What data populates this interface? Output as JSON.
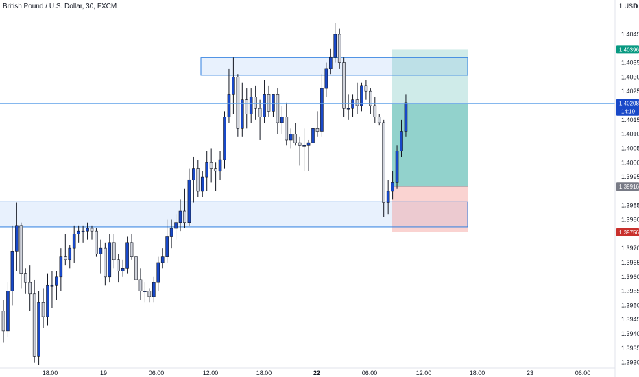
{
  "header": {
    "symbol_title": "British Pound / U.S. Dollar, 30, FXCM",
    "currency_label": "1 USD",
    "currency_menu": "D"
  },
  "colors": {
    "up_body": "#1848c8",
    "down_body": "#d1d4dc",
    "wick": "#131722",
    "zone_fill": "#e8f1fd",
    "zone_stroke": "#2f7fe0",
    "profit_fill": "#26a69a",
    "loss_fill": "#f28b86",
    "price_line": "#5fa0e8",
    "target_tag": "#089981",
    "current_tag": "#1848c8",
    "entry_tag": "#787b86",
    "stop_tag": "#c9302c"
  },
  "chart_data": {
    "type": "candlestick",
    "title": "British Pound / U.S. Dollar, 30, FXCM",
    "y_axis": {
      "ticks": [
        "1.40450",
        "1.40350",
        "1.40300",
        "1.40250",
        "1.40150",
        "1.40100",
        "1.40050",
        "1.40000",
        "1.39950",
        "1.39850",
        "1.39800",
        "1.39700",
        "1.39650",
        "1.39600",
        "1.39550",
        "1.39500",
        "1.39450",
        "1.39400",
        "1.39350",
        "1.39300"
      ],
      "ylim": [
        1.3928,
        1.4057
      ],
      "side": "right"
    },
    "x_axis": {
      "ticks": [
        "18:00",
        "19",
        "06:00",
        "12:00",
        "18:00",
        "22",
        "06:00",
        "12:00",
        "18:00",
        "23",
        "06:00"
      ]
    },
    "price_tags": {
      "target": "1.40396",
      "current": "1.40208",
      "countdown": "14:19",
      "entry": "1.39916",
      "stop": "1.39756"
    },
    "zones": [
      {
        "name": "upper-zone",
        "top": 1.40369,
        "bottom": 1.40306
      },
      {
        "name": "lower-zone",
        "top": 1.39863,
        "bottom": 1.39775
      }
    ],
    "position": {
      "target": 1.40396,
      "entry": 1.39916,
      "stop": 1.39756,
      "current": 1.40208
    },
    "candles": [
      {
        "o": 1.3948,
        "h": 1.3952,
        "l": 1.3937,
        "c": 1.3941
      },
      {
        "o": 1.3941,
        "h": 1.3958,
        "l": 1.3939,
        "c": 1.3955
      },
      {
        "o": 1.3955,
        "h": 1.3978,
        "l": 1.395,
        "c": 1.3969
      },
      {
        "o": 1.3969,
        "h": 1.3986,
        "l": 1.3962,
        "c": 1.3978
      },
      {
        "o": 1.3978,
        "h": 1.3979,
        "l": 1.3956,
        "c": 1.3961
      },
      {
        "o": 1.3961,
        "h": 1.3963,
        "l": 1.3954,
        "c": 1.3958
      },
      {
        "o": 1.3958,
        "h": 1.3964,
        "l": 1.3948,
        "c": 1.3954
      },
      {
        "o": 1.3954,
        "h": 1.3959,
        "l": 1.393,
        "c": 1.3932
      },
      {
        "o": 1.3932,
        "h": 1.3955,
        "l": 1.3929,
        "c": 1.3951
      },
      {
        "o": 1.3951,
        "h": 1.3956,
        "l": 1.3942,
        "c": 1.3946
      },
      {
        "o": 1.3946,
        "h": 1.3961,
        "l": 1.3943,
        "c": 1.3957
      },
      {
        "o": 1.3957,
        "h": 1.3962,
        "l": 1.3949,
        "c": 1.3957
      },
      {
        "o": 1.3957,
        "h": 1.3962,
        "l": 1.3952,
        "c": 1.396
      },
      {
        "o": 1.396,
        "h": 1.397,
        "l": 1.3955,
        "c": 1.3967
      },
      {
        "o": 1.3967,
        "h": 1.3975,
        "l": 1.3964,
        "c": 1.3966
      },
      {
        "o": 1.3966,
        "h": 1.3971,
        "l": 1.3963,
        "c": 1.397
      },
      {
        "o": 1.397,
        "h": 1.3978,
        "l": 1.3965,
        "c": 1.3975
      },
      {
        "o": 1.3975,
        "h": 1.3978,
        "l": 1.3972,
        "c": 1.3976
      },
      {
        "o": 1.3976,
        "h": 1.3978,
        "l": 1.3972,
        "c": 1.3976
      },
      {
        "o": 1.3976,
        "h": 1.3979,
        "l": 1.3973,
        "c": 1.3977
      },
      {
        "o": 1.3977,
        "h": 1.3978,
        "l": 1.3973,
        "c": 1.3976
      },
      {
        "o": 1.3976,
        "h": 1.3977,
        "l": 1.3967,
        "c": 1.3968
      },
      {
        "o": 1.3968,
        "h": 1.3973,
        "l": 1.3961,
        "c": 1.397
      },
      {
        "o": 1.397,
        "h": 1.3972,
        "l": 1.3957,
        "c": 1.396
      },
      {
        "o": 1.396,
        "h": 1.3975,
        "l": 1.3958,
        "c": 1.3972
      },
      {
        "o": 1.3972,
        "h": 1.3975,
        "l": 1.3963,
        "c": 1.3966
      },
      {
        "o": 1.3966,
        "h": 1.3968,
        "l": 1.3958,
        "c": 1.3962
      },
      {
        "o": 1.3962,
        "h": 1.3966,
        "l": 1.396,
        "c": 1.3963
      },
      {
        "o": 1.3963,
        "h": 1.3974,
        "l": 1.3961,
        "c": 1.3972
      },
      {
        "o": 1.3972,
        "h": 1.3975,
        "l": 1.3966,
        "c": 1.3967
      },
      {
        "o": 1.3967,
        "h": 1.3969,
        "l": 1.3955,
        "c": 1.3959
      },
      {
        "o": 1.3959,
        "h": 1.3963,
        "l": 1.3952,
        "c": 1.3955
      },
      {
        "o": 1.3955,
        "h": 1.3958,
        "l": 1.3951,
        "c": 1.3955
      },
      {
        "o": 1.3955,
        "h": 1.3956,
        "l": 1.3951,
        "c": 1.3953
      },
      {
        "o": 1.3953,
        "h": 1.396,
        "l": 1.3951,
        "c": 1.3958
      },
      {
        "o": 1.3958,
        "h": 1.3967,
        "l": 1.3955,
        "c": 1.3965
      },
      {
        "o": 1.3965,
        "h": 1.397,
        "l": 1.3963,
        "c": 1.3967
      },
      {
        "o": 1.3967,
        "h": 1.398,
        "l": 1.3965,
        "c": 1.3974
      },
      {
        "o": 1.3974,
        "h": 1.398,
        "l": 1.397,
        "c": 1.3977
      },
      {
        "o": 1.3977,
        "h": 1.3982,
        "l": 1.3973,
        "c": 1.3979
      },
      {
        "o": 1.3979,
        "h": 1.3987,
        "l": 1.3976,
        "c": 1.3983
      },
      {
        "o": 1.3983,
        "h": 1.3991,
        "l": 1.3977,
        "c": 1.3979
      },
      {
        "o": 1.3979,
        "h": 1.3998,
        "l": 1.3978,
        "c": 1.3994
      },
      {
        "o": 1.3994,
        "h": 1.4002,
        "l": 1.3986,
        "c": 1.3998
      },
      {
        "o": 1.3998,
        "h": 1.4001,
        "l": 1.3988,
        "c": 1.399
      },
      {
        "o": 1.399,
        "h": 1.3997,
        "l": 1.3988,
        "c": 1.3995
      },
      {
        "o": 1.3995,
        "h": 1.4004,
        "l": 1.399,
        "c": 1.4
      },
      {
        "o": 1.4,
        "h": 1.4005,
        "l": 1.3993,
        "c": 1.3998
      },
      {
        "o": 1.3998,
        "h": 1.4,
        "l": 1.399,
        "c": 1.3997
      },
      {
        "o": 1.3997,
        "h": 1.4004,
        "l": 1.3994,
        "c": 1.4001
      },
      {
        "o": 1.4001,
        "h": 1.4018,
        "l": 1.3998,
        "c": 1.4016
      },
      {
        "o": 1.4016,
        "h": 1.4033,
        "l": 1.4014,
        "c": 1.4024
      },
      {
        "o": 1.4024,
        "h": 1.4037,
        "l": 1.4017,
        "c": 1.403
      },
      {
        "o": 1.403,
        "h": 1.4031,
        "l": 1.4009,
        "c": 1.4012
      },
      {
        "o": 1.4012,
        "h": 1.4028,
        "l": 1.4009,
        "c": 1.4022
      },
      {
        "o": 1.4022,
        "h": 1.4026,
        "l": 1.4012,
        "c": 1.4017
      },
      {
        "o": 1.4017,
        "h": 1.4026,
        "l": 1.4014,
        "c": 1.4023
      },
      {
        "o": 1.4023,
        "h": 1.4027,
        "l": 1.4015,
        "c": 1.4019
      },
      {
        "o": 1.4019,
        "h": 1.4022,
        "l": 1.4008,
        "c": 1.4016
      },
      {
        "o": 1.4016,
        "h": 1.4029,
        "l": 1.4014,
        "c": 1.4024
      },
      {
        "o": 1.4024,
        "h": 1.4027,
        "l": 1.4016,
        "c": 1.4018
      },
      {
        "o": 1.4018,
        "h": 1.4024,
        "l": 1.4016,
        "c": 1.4024
      },
      {
        "o": 1.4024,
        "h": 1.4026,
        "l": 1.401,
        "c": 1.4014
      },
      {
        "o": 1.4014,
        "h": 1.402,
        "l": 1.401,
        "c": 1.4016
      },
      {
        "o": 1.4016,
        "h": 1.4021,
        "l": 1.4006,
        "c": 1.4008
      },
      {
        "o": 1.4008,
        "h": 1.4012,
        "l": 1.4005,
        "c": 1.401
      },
      {
        "o": 1.401,
        "h": 1.4014,
        "l": 1.4006,
        "c": 1.4007
      },
      {
        "o": 1.4007,
        "h": 1.4009,
        "l": 1.3999,
        "c": 1.4006
      },
      {
        "o": 1.4006,
        "h": 1.4012,
        "l": 1.3997,
        "c": 1.4006
      },
      {
        "o": 1.4006,
        "h": 1.4008,
        "l": 1.3997,
        "c": 1.4007
      },
      {
        "o": 1.4007,
        "h": 1.4014,
        "l": 1.4005,
        "c": 1.4012
      },
      {
        "o": 1.4012,
        "h": 1.4018,
        "l": 1.4009,
        "c": 1.4011
      },
      {
        "o": 1.4011,
        "h": 1.4031,
        "l": 1.4009,
        "c": 1.4026
      },
      {
        "o": 1.4026,
        "h": 1.4035,
        "l": 1.4023,
        "c": 1.4033
      },
      {
        "o": 1.4033,
        "h": 1.404,
        "l": 1.4031,
        "c": 1.4037
      },
      {
        "o": 1.4037,
        "h": 1.4049,
        "l": 1.4035,
        "c": 1.4045
      },
      {
        "o": 1.4045,
        "h": 1.4047,
        "l": 1.4033,
        "c": 1.4035
      },
      {
        "o": 1.4035,
        "h": 1.4037,
        "l": 1.4016,
        "c": 1.4019
      },
      {
        "o": 1.4019,
        "h": 1.4024,
        "l": 1.4015,
        "c": 1.4019
      },
      {
        "o": 1.4019,
        "h": 1.4024,
        "l": 1.4016,
        "c": 1.4022
      },
      {
        "o": 1.4022,
        "h": 1.4028,
        "l": 1.4017,
        "c": 1.402
      },
      {
        "o": 1.402,
        "h": 1.4028,
        "l": 1.4018,
        "c": 1.4027
      },
      {
        "o": 1.4027,
        "h": 1.4029,
        "l": 1.4022,
        "c": 1.4025
      },
      {
        "o": 1.4025,
        "h": 1.4026,
        "l": 1.4017,
        "c": 1.402
      },
      {
        "o": 1.402,
        "h": 1.4023,
        "l": 1.4014,
        "c": 1.4016
      },
      {
        "o": 1.4016,
        "h": 1.4017,
        "l": 1.4013,
        "c": 1.4014
      },
      {
        "o": 1.4014,
        "h": 1.4015,
        "l": 1.3981,
        "c": 1.3986
      },
      {
        "o": 1.3986,
        "h": 1.3994,
        "l": 1.3982,
        "c": 1.399
      },
      {
        "o": 1.399,
        "h": 1.3997,
        "l": 1.3987,
        "c": 1.3993
      },
      {
        "o": 1.3993,
        "h": 1.4006,
        "l": 1.3991,
        "c": 1.4004
      },
      {
        "o": 1.4004,
        "h": 1.4015,
        "l": 1.4002,
        "c": 1.4011
      },
      {
        "o": 1.4011,
        "h": 1.4024,
        "l": 1.4009,
        "c": 1.4021
      }
    ]
  }
}
